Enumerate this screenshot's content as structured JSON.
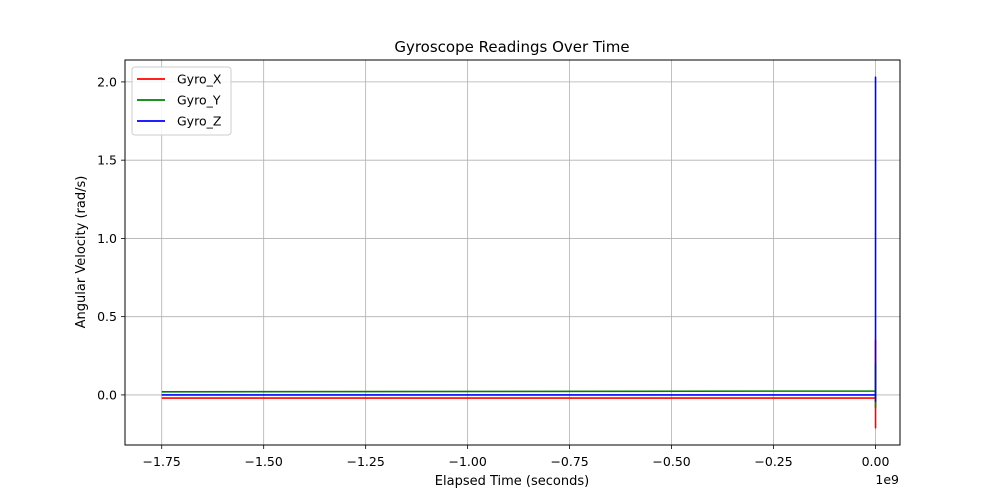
{
  "chart_data": {
    "type": "line",
    "title": "Gyroscope Readings Over Time",
    "xlabel": "Elapsed Time (seconds)",
    "ylabel": "Angular Velocity (rad/s)",
    "x_scale_label": "1e9",
    "x_multiplier": 1000000000,
    "xlim": [
      -1.84,
      0.06
    ],
    "ylim": [
      -0.32,
      2.14
    ],
    "xticks": [
      -1.75,
      -1.5,
      -1.25,
      -1.0,
      -0.75,
      -0.5,
      -0.25,
      0.0
    ],
    "xtick_labels": [
      "−1.75",
      "−1.50",
      "−1.25",
      "−1.00",
      "−0.75",
      "−0.50",
      "−0.25",
      "0.00"
    ],
    "yticks": [
      0.0,
      0.5,
      1.0,
      1.5,
      2.0
    ],
    "ytick_labels": [
      "0.0",
      "0.5",
      "1.0",
      "1.5",
      "2.0"
    ],
    "grid": true,
    "legend_position": "top-left",
    "series": [
      {
        "name": "Gyro_X",
        "color": "#ff0000",
        "points": [
          [
            -1.75,
            -0.02
          ],
          [
            -0.001,
            -0.02
          ],
          [
            0.0,
            -0.02
          ],
          [
            0.0,
            -0.21
          ],
          [
            0.0,
            0.35
          ],
          [
            0.0,
            -0.1
          ]
        ]
      },
      {
        "name": "Gyro_Y",
        "color": "#008000",
        "points": [
          [
            -1.75,
            0.02
          ],
          [
            -0.001,
            0.025
          ],
          [
            0.0,
            0.025
          ],
          [
            0.0,
            -0.08
          ],
          [
            0.0,
            0.2
          ],
          [
            0.0,
            0.03
          ]
        ]
      },
      {
        "name": "Gyro_Z",
        "color": "#0000ff",
        "points": [
          [
            -1.75,
            0.0
          ],
          [
            -0.001,
            0.0
          ],
          [
            0.0,
            0.0
          ],
          [
            0.0,
            2.03
          ],
          [
            0.0,
            -0.04
          ],
          [
            0.0,
            0.0
          ]
        ]
      }
    ]
  }
}
